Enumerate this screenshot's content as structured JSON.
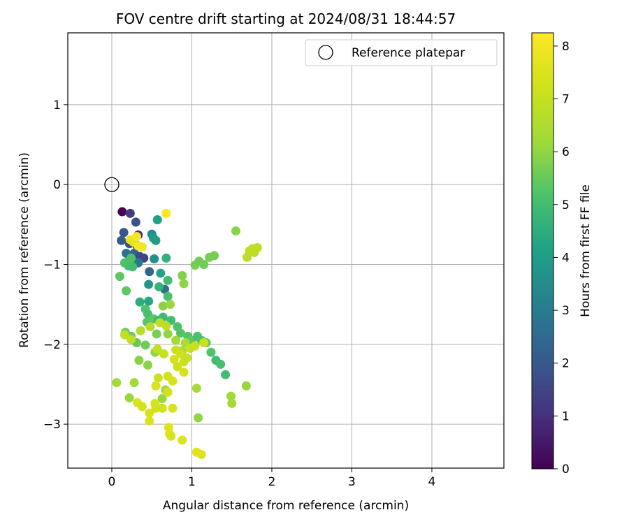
{
  "chart_data": {
    "type": "scatter",
    "title": "FOV centre drift starting at 2024/08/31 18:44:57",
    "xlabel": "Angular distance from reference (arcmin)",
    "ylabel": "Rotation from reference (arcmin)",
    "xlim": [
      -0.55,
      4.9
    ],
    "ylim": [
      -3.55,
      1.9
    ],
    "x_ticks": [
      0,
      1,
      2,
      3,
      4
    ],
    "x_tick_labels": [
      "0",
      "1",
      "2",
      "3",
      "4"
    ],
    "y_ticks": [
      1,
      0,
      -1,
      -2,
      -3
    ],
    "y_tick_labels": [
      "1",
      "0",
      "−1",
      "−2",
      "−3"
    ],
    "grid": true,
    "legend": {
      "position": "top-right",
      "entries": [
        {
          "label": "Reference platepar",
          "marker": "open-circle"
        }
      ]
    },
    "reference_point": {
      "x": 0,
      "y": 0
    },
    "colorbar": {
      "label": "Hours from first FF file",
      "min": 0,
      "max": 8.25,
      "ticks": [
        0,
        1,
        2,
        3,
        4,
        5,
        6,
        7,
        8
      ],
      "tick_labels": [
        "0",
        "1",
        "2",
        "3",
        "4",
        "5",
        "6",
        "7",
        "8"
      ],
      "colormap": "viridis"
    },
    "series": [
      {
        "points": [
          [
            0.13,
            -0.34,
            0.05
          ],
          [
            0.23,
            -0.36,
            1.3
          ],
          [
            0.3,
            -0.47,
            1.8
          ],
          [
            0.33,
            -0.63,
            1.0
          ],
          [
            0.15,
            -0.6,
            1.9
          ],
          [
            0.12,
            -0.7,
            2.0
          ],
          [
            0.22,
            -0.74,
            1.9
          ],
          [
            0.31,
            -0.76,
            1.7
          ],
          [
            0.28,
            -0.86,
            2.3
          ],
          [
            0.35,
            -0.9,
            1.6
          ],
          [
            0.4,
            -0.92,
            1.5
          ],
          [
            0.18,
            -0.86,
            2.7
          ],
          [
            0.22,
            -0.95,
            3.1
          ],
          [
            0.33,
            -0.98,
            2.9
          ],
          [
            0.47,
            -1.09,
            2.4
          ],
          [
            0.46,
            -1.25,
            3.8
          ],
          [
            0.53,
            -0.93,
            3.6
          ],
          [
            0.5,
            -0.62,
            3.5
          ],
          [
            0.55,
            -0.7,
            3.9
          ],
          [
            0.57,
            -0.44,
            4.1
          ],
          [
            0.66,
            -1.31,
            2.6
          ],
          [
            0.61,
            -1.11,
            4.2
          ],
          [
            0.52,
            -0.67,
            4.0
          ],
          [
            0.68,
            -0.92,
            4.6
          ],
          [
            0.59,
            -1.28,
            4.7
          ],
          [
            0.7,
            -1.2,
            5.0
          ],
          [
            0.7,
            -1.4,
            5.1
          ],
          [
            0.35,
            -1.47,
            4.5
          ],
          [
            0.46,
            -1.46,
            4.3
          ],
          [
            0.1,
            -1.15,
            5.4
          ],
          [
            0.18,
            -1.33,
            5.4
          ],
          [
            0.16,
            -0.98,
            5.2
          ],
          [
            0.21,
            -1.02,
            5.1
          ],
          [
            0.26,
            -1.03,
            5.0
          ],
          [
            0.24,
            -0.92,
            5.2
          ],
          [
            0.42,
            -1.56,
            5.2
          ],
          [
            0.45,
            -1.62,
            5.1
          ],
          [
            0.44,
            -1.72,
            5.3
          ],
          [
            0.52,
            -1.68,
            5.4
          ],
          [
            0.58,
            -1.7,
            4.8
          ],
          [
            0.64,
            -1.66,
            4.9
          ],
          [
            0.74,
            -1.7,
            5.0
          ],
          [
            0.82,
            -1.78,
            5.2
          ],
          [
            0.86,
            -1.86,
            5.3
          ],
          [
            0.95,
            -1.9,
            5.3
          ],
          [
            1.0,
            -1.95,
            5.4
          ],
          [
            1.07,
            -1.9,
            5.1
          ],
          [
            1.12,
            -1.95,
            5.2
          ],
          [
            1.18,
            -1.98,
            5.5
          ],
          [
            1.24,
            -2.1,
            5.2
          ],
          [
            1.3,
            -2.2,
            5.0
          ],
          [
            1.36,
            -2.25,
            5.1
          ],
          [
            1.42,
            -2.38,
            5.0
          ],
          [
            0.17,
            -1.85,
            5.6
          ],
          [
            0.24,
            -1.9,
            5.5
          ],
          [
            0.31,
            -1.98,
            5.5
          ],
          [
            0.42,
            -2.01,
            5.6
          ],
          [
            0.56,
            -1.87,
            5.7
          ],
          [
            0.7,
            -1.87,
            6.0
          ],
          [
            0.88,
            -1.14,
            5.8
          ],
          [
            0.9,
            -1.24,
            6.0
          ],
          [
            1.04,
            -1.01,
            5.7
          ],
          [
            1.09,
            -0.96,
            5.6
          ],
          [
            1.15,
            -1.0,
            5.6
          ],
          [
            1.22,
            -0.91,
            5.7
          ],
          [
            1.28,
            -0.89,
            5.7
          ],
          [
            1.55,
            -0.58,
            5.9
          ],
          [
            0.64,
            -1.52,
            5.9
          ],
          [
            0.73,
            -1.5,
            6.1
          ],
          [
            0.8,
            -1.95,
            6.2
          ],
          [
            0.92,
            -1.98,
            6.4
          ],
          [
            0.34,
            -2.2,
            5.9
          ],
          [
            0.45,
            -2.26,
            5.9
          ],
          [
            0.54,
            -2.1,
            6.0
          ],
          [
            0.88,
            -2.08,
            6.4
          ],
          [
            0.06,
            -2.48,
            6.3
          ],
          [
            0.28,
            -2.48,
            6.2
          ],
          [
            0.22,
            -2.67,
            6.1
          ],
          [
            0.67,
            -2.57,
            6.2
          ],
          [
            0.63,
            -2.68,
            6.1
          ],
          [
            1.06,
            -2.55,
            6.3
          ],
          [
            1.08,
            -2.92,
            6.0
          ],
          [
            1.49,
            -2.65,
            6.2
          ],
          [
            1.5,
            -2.74,
            6.3
          ],
          [
            1.68,
            -2.52,
            6.1
          ],
          [
            1.69,
            -0.91,
            6.7
          ],
          [
            1.72,
            -0.83,
            6.8
          ],
          [
            1.76,
            -0.8,
            6.9
          ],
          [
            1.78,
            -0.85,
            6.8
          ],
          [
            1.82,
            -0.79,
            6.8
          ],
          [
            0.16,
            -1.88,
            6.8
          ],
          [
            0.24,
            -1.94,
            6.9
          ],
          [
            0.36,
            -1.83,
            6.7
          ],
          [
            0.48,
            -1.78,
            6.6
          ],
          [
            0.6,
            -1.73,
            6.8
          ],
          [
            0.68,
            -1.77,
            6.8
          ],
          [
            0.8,
            -2.07,
            7.1
          ],
          [
            0.86,
            -2.12,
            7.2
          ],
          [
            0.9,
            -2.22,
            7.2
          ],
          [
            0.94,
            -2.17,
            7.0
          ],
          [
            0.98,
            -2.05,
            7.0
          ],
          [
            1.04,
            -2.02,
            7.1
          ],
          [
            1.15,
            -1.98,
            7.0
          ],
          [
            0.57,
            -2.06,
            6.9
          ],
          [
            0.65,
            -2.12,
            7.0
          ],
          [
            0.58,
            -2.42,
            7.2
          ],
          [
            0.7,
            -2.4,
            7.3
          ],
          [
            0.76,
            -2.46,
            7.4
          ],
          [
            0.82,
            -2.28,
            7.2
          ],
          [
            0.78,
            -2.19,
            7.3
          ],
          [
            0.9,
            -2.35,
            7.4
          ],
          [
            0.55,
            -2.52,
            7.4
          ],
          [
            0.32,
            -2.73,
            7.5
          ],
          [
            0.38,
            -2.78,
            7.3
          ],
          [
            0.47,
            -2.86,
            7.4
          ],
          [
            0.47,
            -2.96,
            7.5
          ],
          [
            0.54,
            -2.74,
            7.4
          ],
          [
            0.55,
            -2.8,
            7.3
          ],
          [
            0.63,
            -2.8,
            7.2
          ],
          [
            0.7,
            -2.6,
            7.3
          ],
          [
            0.71,
            -3.04,
            7.5
          ],
          [
            0.72,
            -3.12,
            7.6
          ],
          [
            0.74,
            -3.15,
            7.4
          ],
          [
            0.76,
            -2.8,
            7.4
          ],
          [
            0.88,
            -3.2,
            7.5
          ],
          [
            1.06,
            -3.35,
            7.6
          ],
          [
            1.12,
            -3.38,
            7.5
          ],
          [
            0.23,
            -0.69,
            7.9
          ],
          [
            0.27,
            -0.72,
            7.7
          ],
          [
            0.33,
            -0.77,
            8.1
          ],
          [
            0.38,
            -0.78,
            8.0
          ],
          [
            0.68,
            -0.36,
            8.2
          ],
          [
            0.31,
            -0.65,
            8.1
          ]
        ]
      }
    ]
  }
}
